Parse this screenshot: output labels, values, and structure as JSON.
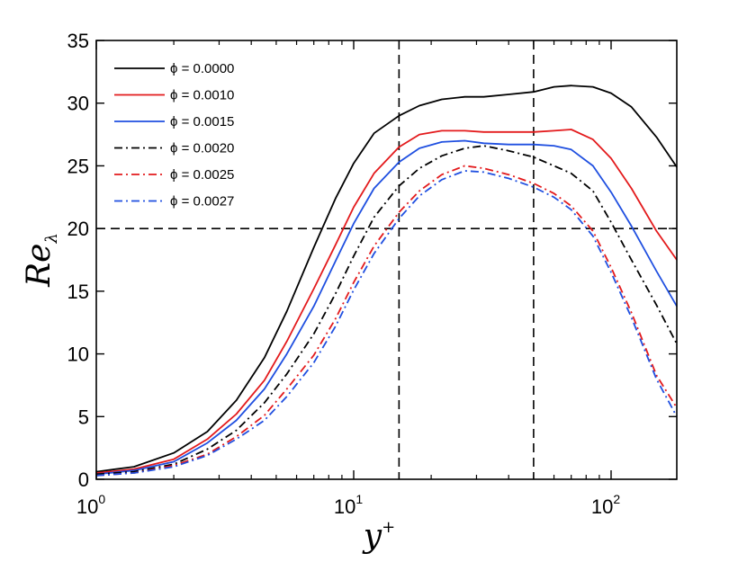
{
  "chart_data": {
    "type": "line",
    "xscale": "log",
    "xlabel": "y",
    "xlabel_sup": "+",
    "ylabel": "Re",
    "ylabel_sub": "λ",
    "xlim": [
      1,
      180
    ],
    "ylim": [
      0,
      35
    ],
    "x_ticks": [
      {
        "base": "10",
        "exp": "0",
        "value": 1
      },
      {
        "base": "10",
        "exp": "1",
        "value": 10
      },
      {
        "base": "10",
        "exp": "2",
        "value": 100
      }
    ],
    "y_ticks": [
      "0",
      "5",
      "10",
      "15",
      "20",
      "25",
      "30",
      "35"
    ],
    "reference_lines": [
      {
        "axis": "y",
        "value": 20
      },
      {
        "axis": "x",
        "value": 15
      },
      {
        "axis": "x",
        "value": 50
      }
    ],
    "legend_position": "top-left",
    "x": [
      1.0,
      1.4,
      2.0,
      2.7,
      3.5,
      4.5,
      5.5,
      7,
      8.5,
      10,
      12,
      15,
      18,
      22,
      27,
      32,
      40,
      50,
      60,
      70,
      85,
      100,
      120,
      150,
      180
    ],
    "series": [
      {
        "name": "ϕ = 0.0000",
        "color": "#000000",
        "dash": "solid",
        "values": [
          0.6,
          1.0,
          2.1,
          3.8,
          6.3,
          9.7,
          13.4,
          18.5,
          22.4,
          25.2,
          27.6,
          29.0,
          29.8,
          30.3,
          30.5,
          30.5,
          30.7,
          30.9,
          31.3,
          31.4,
          31.3,
          30.8,
          29.7,
          27.3,
          24.9
        ]
      },
      {
        "name": "ϕ = 0.0010",
        "color": "#e31a1c",
        "dash": "solid",
        "values": [
          0.5,
          0.8,
          1.6,
          3.2,
          5.2,
          7.9,
          11.0,
          15.2,
          18.7,
          21.7,
          24.4,
          26.5,
          27.5,
          27.8,
          27.8,
          27.7,
          27.7,
          27.7,
          27.8,
          27.9,
          27.1,
          25.6,
          23.2,
          19.8,
          17.5
        ]
      },
      {
        "name": "ϕ = 0.0015",
        "color": "#1f4fe0",
        "dash": "solid",
        "values": [
          0.4,
          0.7,
          1.4,
          2.9,
          4.7,
          7.2,
          10.0,
          13.8,
          17.4,
          20.4,
          23.2,
          25.3,
          26.4,
          26.9,
          27.0,
          26.8,
          26.7,
          26.7,
          26.6,
          26.3,
          25.0,
          22.9,
          20.2,
          16.6,
          13.8
        ]
      },
      {
        "name": "ϕ = 0.0020",
        "color": "#000000",
        "dash": "dashdot",
        "values": [
          0.4,
          0.6,
          1.2,
          2.4,
          3.9,
          6.1,
          8.4,
          11.6,
          14.8,
          17.8,
          20.9,
          23.4,
          24.8,
          25.8,
          26.4,
          26.6,
          26.2,
          25.7,
          25.0,
          24.4,
          23.0,
          20.5,
          17.5,
          13.9,
          10.8
        ]
      },
      {
        "name": "ϕ = 0.0025",
        "color": "#e31a1c",
        "dash": "dashdot",
        "values": [
          0.3,
          0.5,
          1.1,
          2.0,
          3.4,
          5.1,
          7.2,
          9.9,
          12.8,
          15.7,
          18.6,
          21.3,
          23.0,
          24.3,
          25.0,
          24.8,
          24.3,
          23.6,
          22.8,
          21.8,
          19.8,
          16.9,
          13.3,
          8.3,
          5.7
        ]
      },
      {
        "name": "ϕ = 0.0027",
        "color": "#1f4fe0",
        "dash": "dashdot",
        "values": [
          0.3,
          0.5,
          1.0,
          1.9,
          3.2,
          4.7,
          6.6,
          9.3,
          12.2,
          15.1,
          18.0,
          20.8,
          22.6,
          23.9,
          24.6,
          24.5,
          24.0,
          23.3,
          22.5,
          21.5,
          19.4,
          16.5,
          12.9,
          8.0,
          5.0
        ]
      }
    ]
  }
}
